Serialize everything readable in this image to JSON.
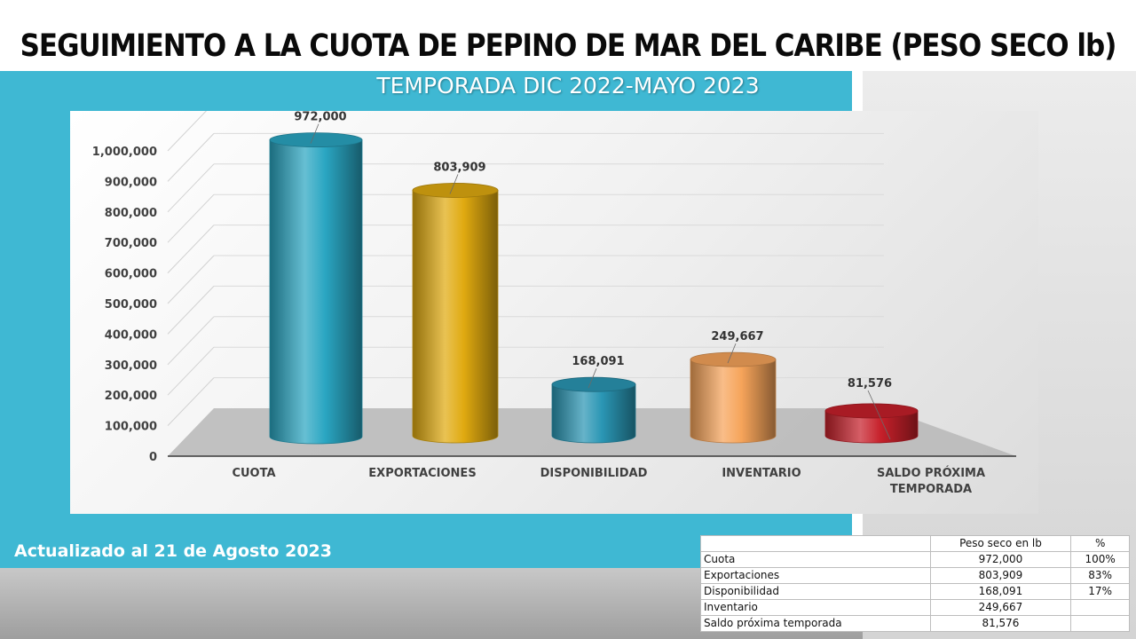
{
  "header": {
    "title": "SEGUIMIENTO A LA CUOTA DE PEPINO DE MAR DEL CARIBE (PESO SECO lb)",
    "subtitle": "TEMPORADA DIC 2022-MAYO 2023"
  },
  "footer": {
    "updated": "Actualizado al 21 de Agosto 2023"
  },
  "chart_data": {
    "type": "bar",
    "style": "3d-cylinder",
    "categories": [
      "CUOTA",
      "EXPORTACIONES",
      "DISPONIBILIDAD",
      "INVENTARIO",
      "SALDO PRÓXIMA TEMPORADA"
    ],
    "values": [
      972000,
      803909,
      168091,
      249667,
      81576
    ],
    "data_labels": [
      "972,000",
      "803,909",
      "168,091",
      "249,667",
      "81,576"
    ],
    "y_ticks": [
      "0",
      "100,000",
      "200,000",
      "300,000",
      "400,000",
      "500,000",
      "600,000",
      "700,000",
      "800,000",
      "900,000",
      "1,000,000"
    ],
    "ylim": [
      0,
      1000000
    ],
    "grid": true,
    "bar_colors": [
      "#2aa6c2",
      "#e0aa10",
      "#2a96b4",
      "#f6a45a",
      "#c6202a"
    ],
    "title": "",
    "xlabel": "",
    "ylabel": ""
  },
  "table": {
    "headers": [
      "",
      "Peso seco en lb",
      "%"
    ],
    "rows": [
      [
        "Cuota",
        "972,000",
        "100%"
      ],
      [
        "Exportaciones",
        "803,909",
        "83%"
      ],
      [
        "Disponibilidad",
        "168,091",
        "17%"
      ],
      [
        "Inventario",
        "249,667",
        ""
      ],
      [
        "Saldo próxima temporada",
        "81,576",
        ""
      ]
    ]
  }
}
